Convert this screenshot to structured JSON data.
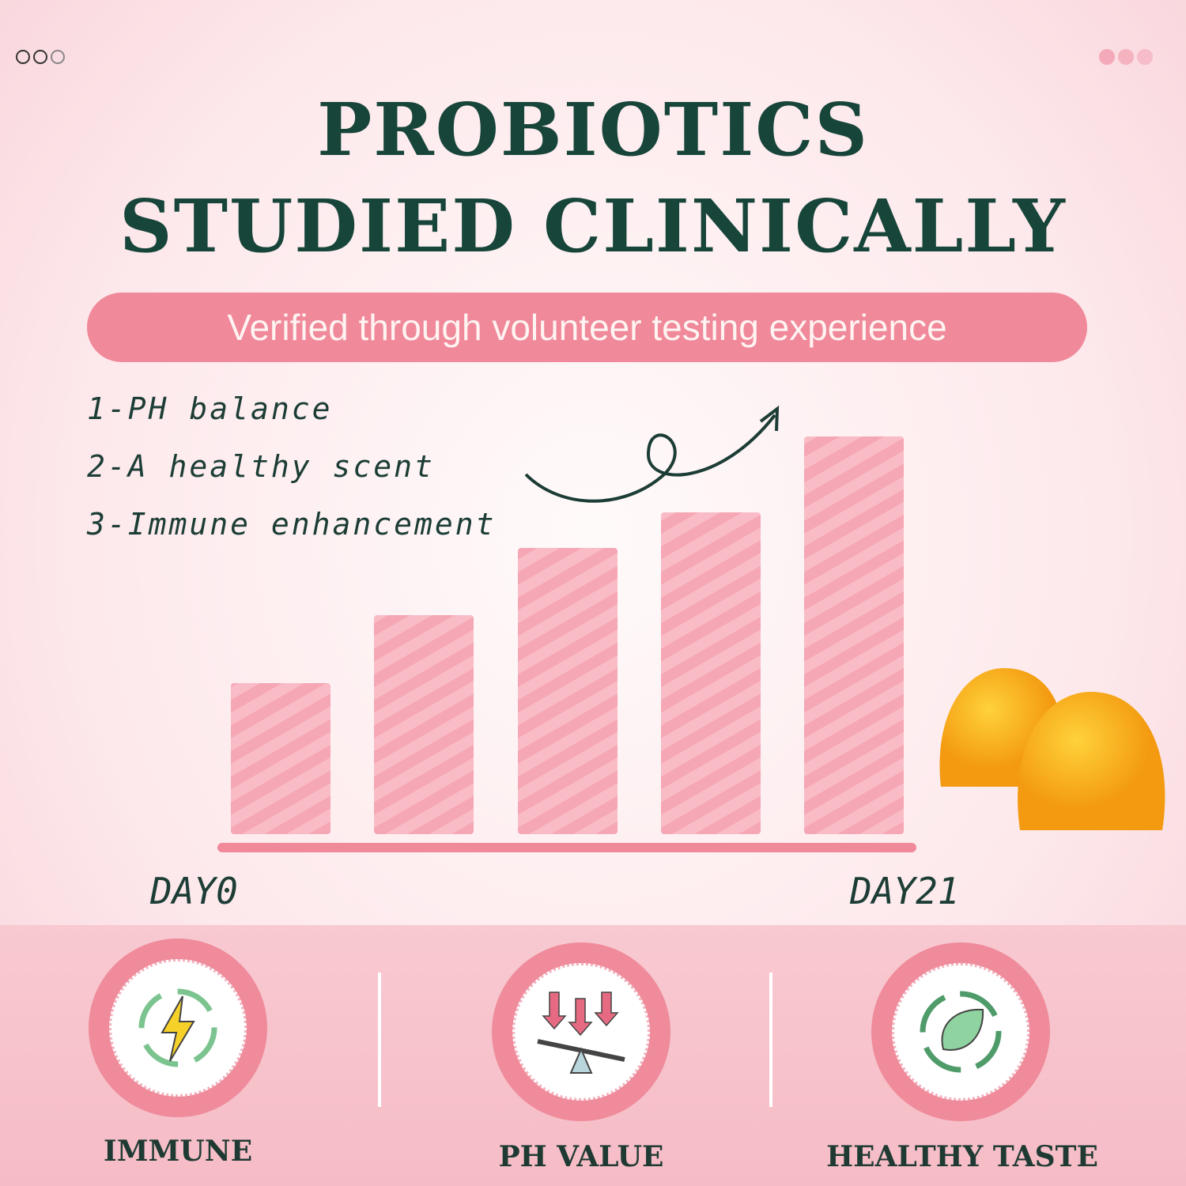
{
  "header": {
    "title_line1": "PROBIOTICS",
    "title_line2": "STUDIED CLINICALLY",
    "subtitle": "Verified through volunteer testing experience"
  },
  "benefits_list": [
    "1-PH balance",
    "2-A healthy scent",
    "3-Immune enhancement"
  ],
  "chart_data": {
    "type": "bar",
    "title": "",
    "xlabel": "",
    "ylabel": "",
    "start_label": "DAY0",
    "end_label": "DAY21",
    "values_relative_percent": [
      38,
      55,
      72,
      81,
      100
    ],
    "trend_arrow": "up"
  },
  "features": [
    {
      "label": "IMMUNE",
      "icon": "lightning-cycle-icon"
    },
    {
      "label": "PH VALUE",
      "icon": "ph-balance-icon"
    },
    {
      "label": "HEALTHY TASTE",
      "icon": "leaf-cycle-icon"
    }
  ],
  "colors": {
    "title": "#17453a",
    "accent_pink": "#f0899a",
    "bar": "#f6a7b5",
    "gummy": "#f7a916"
  }
}
